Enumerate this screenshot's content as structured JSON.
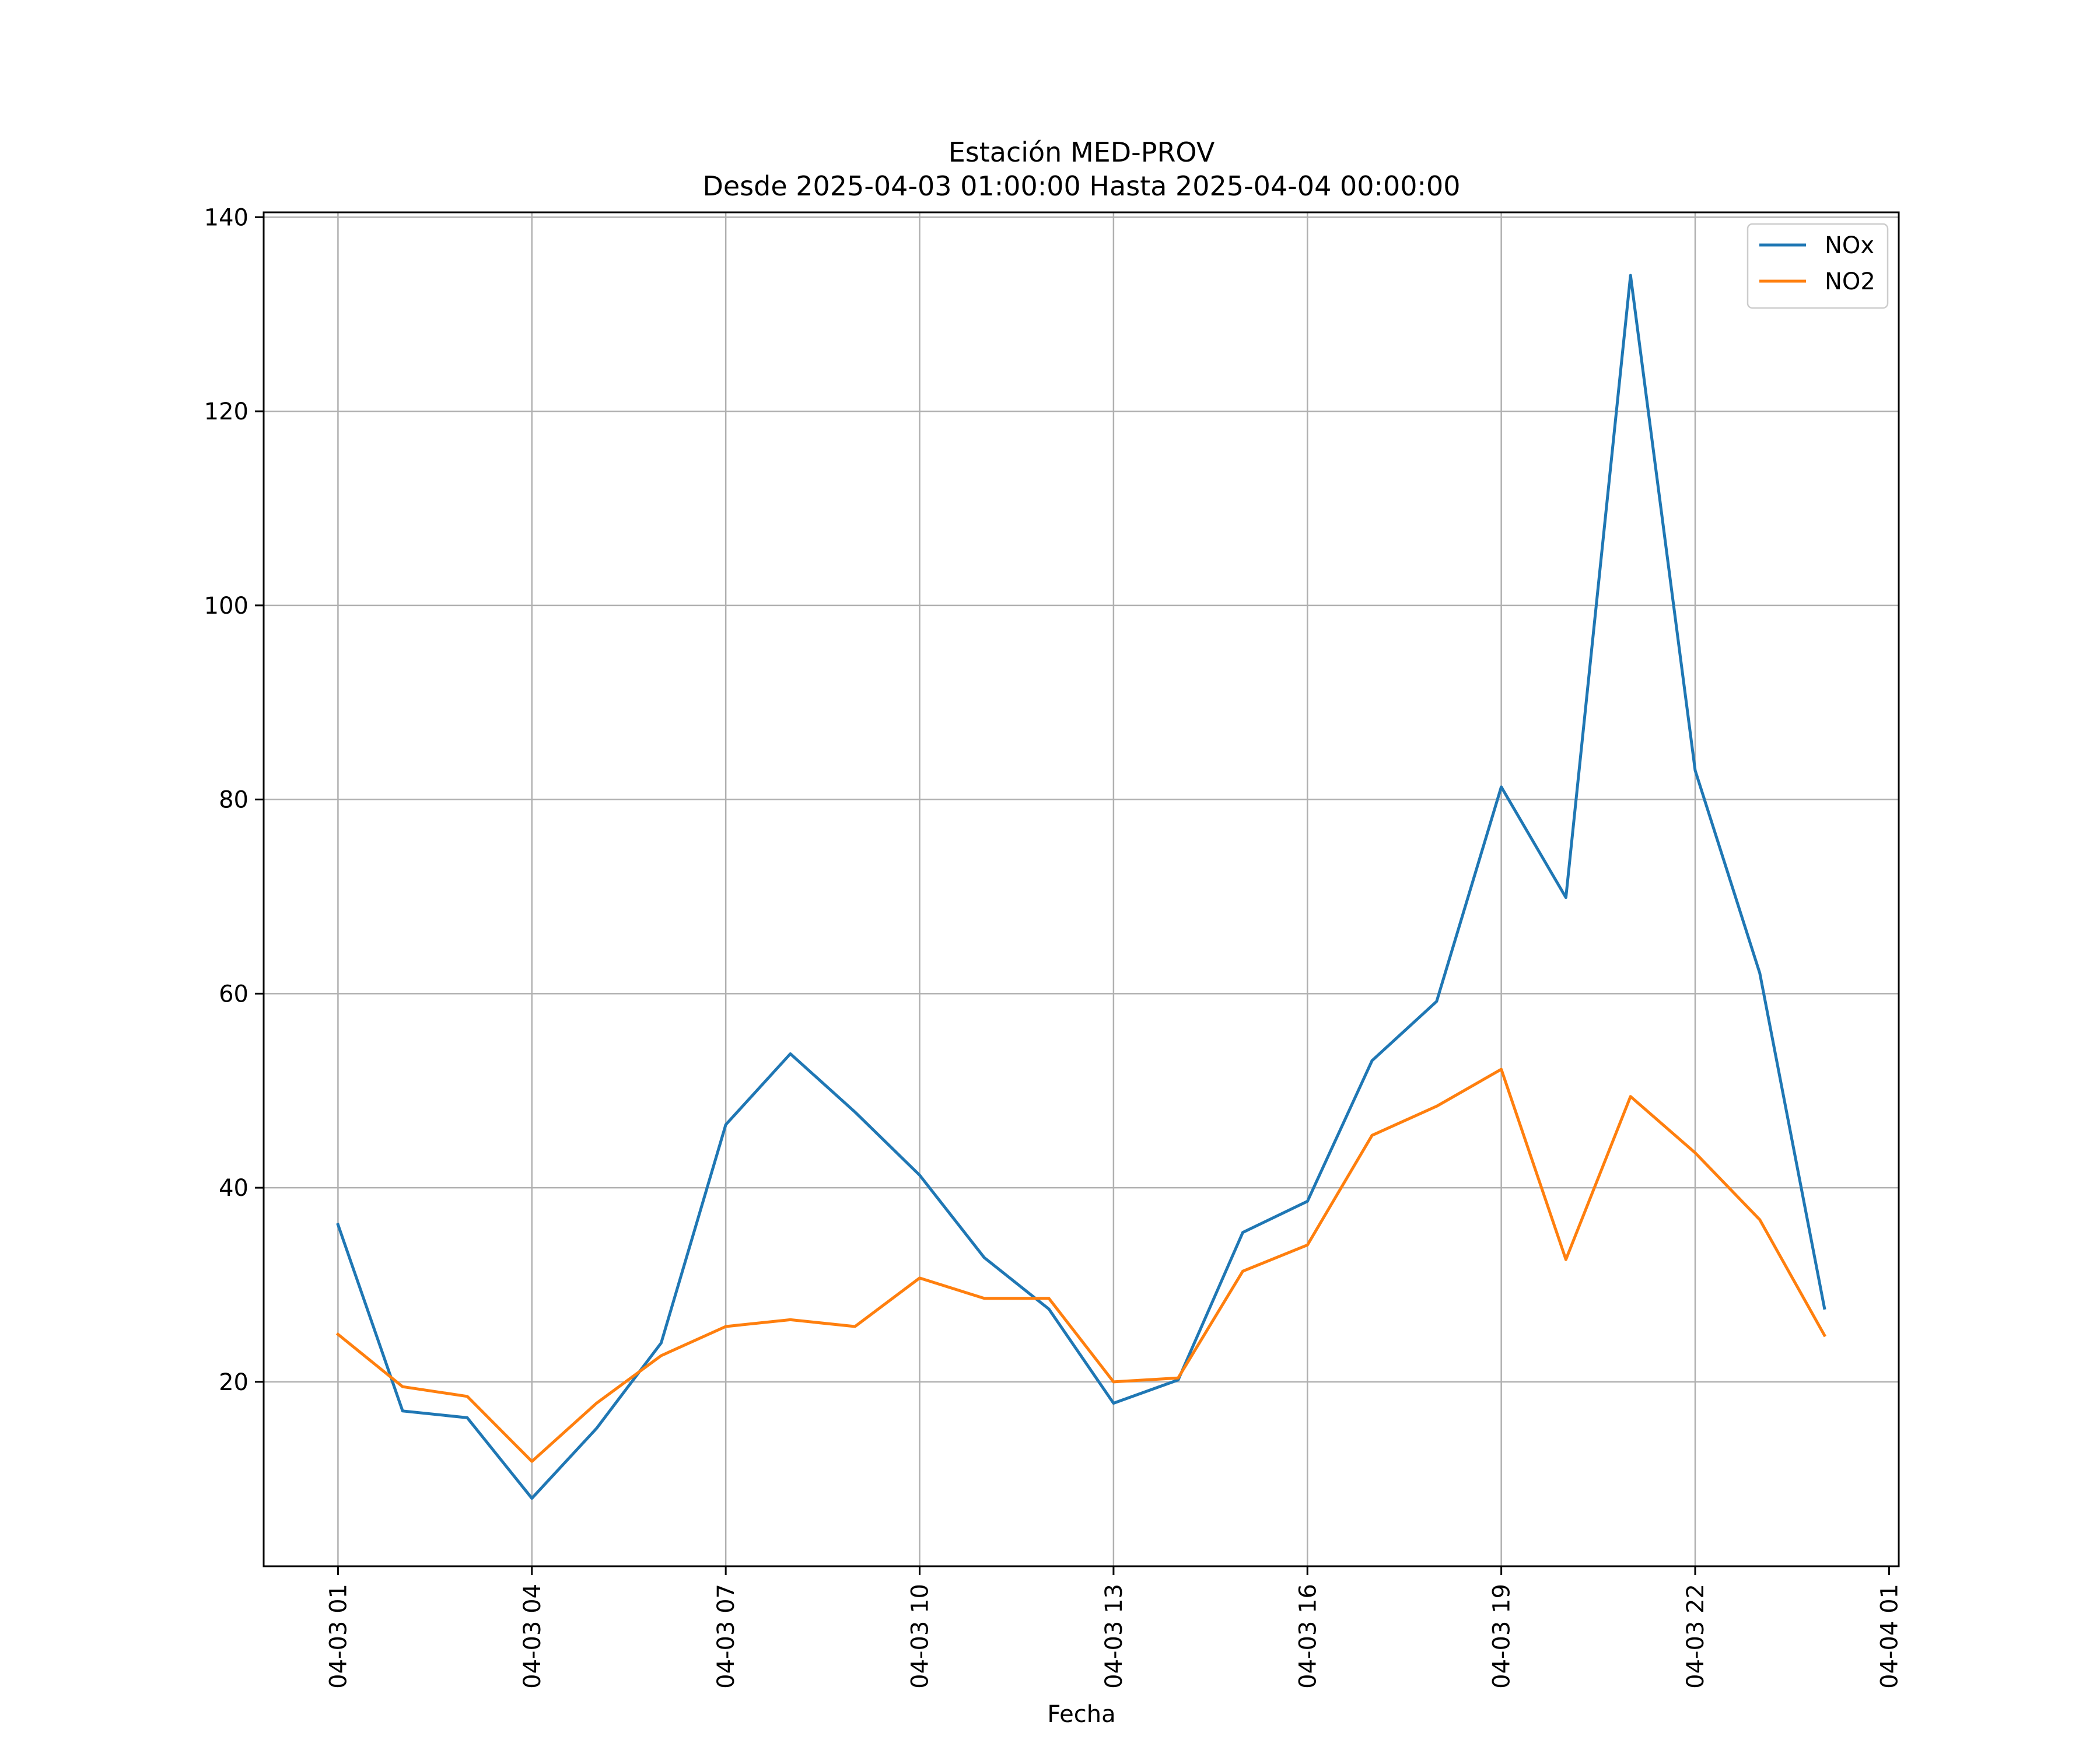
{
  "chart_data": {
    "type": "line",
    "title": "Estación MED-PROV",
    "subtitle": "Desde 2025-04-03 01:00:00 Hasta 2025-04-04 00:00:00",
    "xlabel": "Fecha",
    "ylabel": "",
    "x": [
      "2025-04-03 01:00",
      "2025-04-03 02:00",
      "2025-04-03 03:00",
      "2025-04-03 04:00",
      "2025-04-03 05:00",
      "2025-04-03 06:00",
      "2025-04-03 07:00",
      "2025-04-03 08:00",
      "2025-04-03 09:00",
      "2025-04-03 10:00",
      "2025-04-03 11:00",
      "2025-04-03 12:00",
      "2025-04-03 13:00",
      "2025-04-03 14:00",
      "2025-04-03 15:00",
      "2025-04-03 16:00",
      "2025-04-03 17:00",
      "2025-04-03 18:00",
      "2025-04-03 19:00",
      "2025-04-03 20:00",
      "2025-04-03 21:00",
      "2025-04-03 22:00",
      "2025-04-03 23:00",
      "2025-04-04 00:00"
    ],
    "series": [
      {
        "name": "NOx",
        "color": "#1f77b4",
        "values": [
          36.2,
          17.0,
          16.3,
          8.0,
          15.2,
          24.0,
          46.5,
          53.8,
          47.8,
          41.3,
          32.8,
          27.5,
          17.8,
          20.2,
          35.4,
          38.6,
          53.1,
          59.2,
          81.3,
          69.9,
          134.0,
          83.0,
          62.1,
          27.6
        ]
      },
      {
        "name": "NO2",
        "color": "#ff7f0e",
        "values": [
          24.9,
          19.5,
          18.5,
          11.8,
          17.8,
          22.7,
          25.7,
          26.4,
          25.7,
          30.7,
          28.6,
          28.6,
          20.0,
          20.4,
          31.4,
          34.1,
          45.4,
          48.4,
          52.2,
          32.6,
          49.4,
          43.6,
          36.7,
          24.8
        ]
      }
    ],
    "xticks": [
      "04-03 01",
      "04-03 04",
      "04-03 07",
      "04-03 10",
      "04-03 13",
      "04-03 16",
      "04-03 19",
      "04-03 22",
      "04-04 01"
    ],
    "xtick_hours": [
      0,
      3,
      6,
      9,
      12,
      15,
      18,
      21,
      24
    ],
    "yticks": [
      20,
      40,
      60,
      80,
      100,
      120,
      140
    ],
    "ylim": [
      1.0,
      140.5
    ],
    "xlim_hours": [
      -1.15,
      24.15
    ],
    "grid": true,
    "legend_position": "top-right"
  }
}
